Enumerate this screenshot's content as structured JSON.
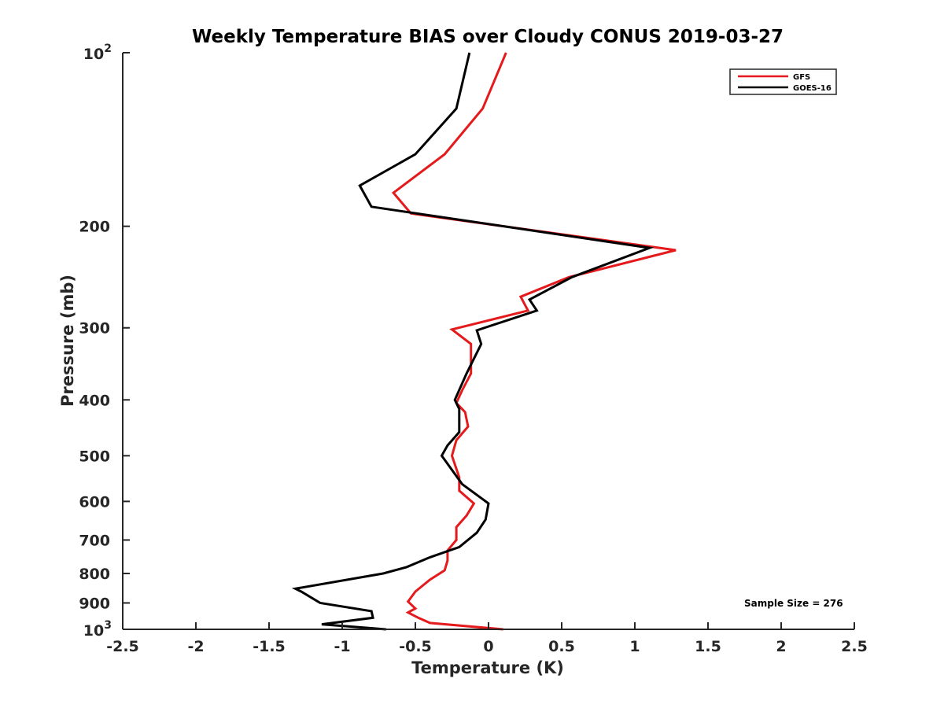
{
  "chart_data": {
    "type": "line",
    "title": "Weekly Temperature BIAS over Cloudy CONUS 2019-03-27",
    "xlabel": "Temperature (K)",
    "ylabel": "Pressure (mb)",
    "xlim": [
      -2.5,
      2.5
    ],
    "ylim": [
      100,
      1000
    ],
    "yscale": "log",
    "y_reversed": true,
    "grid": false,
    "legend_position": "top-right",
    "x_ticks": [
      -2.5,
      -2,
      -1.5,
      -1,
      -0.5,
      0,
      0.5,
      1,
      1.5,
      2,
      2.5
    ],
    "x_tick_labels": [
      "-2.5",
      "-2",
      "-1.5",
      "-1",
      "-0.5",
      "0",
      "0.5",
      "1",
      "1.5",
      "2",
      "2.5"
    ],
    "y_ticks": [
      200,
      300,
      400,
      500,
      600,
      700,
      800,
      900
    ],
    "y_tick_labels": [
      "200",
      "300",
      "400",
      "500",
      "600",
      "700",
      "800",
      "900"
    ],
    "y_power_ticks": [
      {
        "value": 100,
        "base": "10",
        "exp": "2"
      },
      {
        "value": 1000,
        "base": "10",
        "exp": "3"
      }
    ],
    "annotation": "Sample Size = 276",
    "series": [
      {
        "name": "GFS",
        "color": "#e41a1c",
        "points": [
          [
            0.12,
            100
          ],
          [
            -0.04,
            125
          ],
          [
            -0.3,
            150
          ],
          [
            -0.65,
            175
          ],
          [
            -0.53,
            190
          ],
          [
            1.28,
            220
          ],
          [
            0.55,
            245
          ],
          [
            0.22,
            265
          ],
          [
            0.27,
            280
          ],
          [
            -0.25,
            302
          ],
          [
            -0.12,
            320
          ],
          [
            -0.12,
            360
          ],
          [
            -0.18,
            385
          ],
          [
            -0.22,
            405
          ],
          [
            -0.16,
            420
          ],
          [
            -0.14,
            445
          ],
          [
            -0.22,
            470
          ],
          [
            -0.25,
            500
          ],
          [
            -0.2,
            545
          ],
          [
            -0.2,
            575
          ],
          [
            -0.1,
            605
          ],
          [
            -0.15,
            635
          ],
          [
            -0.22,
            665
          ],
          [
            -0.22,
            700
          ],
          [
            -0.28,
            730
          ],
          [
            -0.28,
            760
          ],
          [
            -0.3,
            790
          ],
          [
            -0.4,
            820
          ],
          [
            -0.5,
            860
          ],
          [
            -0.55,
            895
          ],
          [
            -0.5,
            920
          ],
          [
            -0.55,
            935
          ],
          [
            -0.48,
            955
          ],
          [
            -0.4,
            975
          ],
          [
            0.1,
            1000
          ]
        ]
      },
      {
        "name": "GOES-16",
        "color": "#000000",
        "points": [
          [
            -0.13,
            100
          ],
          [
            -0.22,
            125
          ],
          [
            -0.5,
            150
          ],
          [
            -0.88,
            170
          ],
          [
            -0.8,
            185
          ],
          [
            1.1,
            218
          ],
          [
            0.57,
            245
          ],
          [
            0.28,
            268
          ],
          [
            0.33,
            280
          ],
          [
            -0.08,
            303
          ],
          [
            -0.05,
            320
          ],
          [
            -0.15,
            360
          ],
          [
            -0.23,
            400
          ],
          [
            -0.2,
            415
          ],
          [
            -0.2,
            455
          ],
          [
            -0.28,
            480
          ],
          [
            -0.32,
            500
          ],
          [
            -0.18,
            560
          ],
          [
            0.0,
            605
          ],
          [
            -0.02,
            645
          ],
          [
            -0.08,
            680
          ],
          [
            -0.2,
            720
          ],
          [
            -0.4,
            750
          ],
          [
            -0.56,
            780
          ],
          [
            -0.72,
            800
          ],
          [
            -1.32,
            850
          ],
          [
            -1.28,
            860
          ],
          [
            -1.15,
            900
          ],
          [
            -0.8,
            930
          ],
          [
            -0.79,
            955
          ],
          [
            -1.14,
            980
          ],
          [
            -0.7,
            1000
          ]
        ]
      }
    ]
  }
}
